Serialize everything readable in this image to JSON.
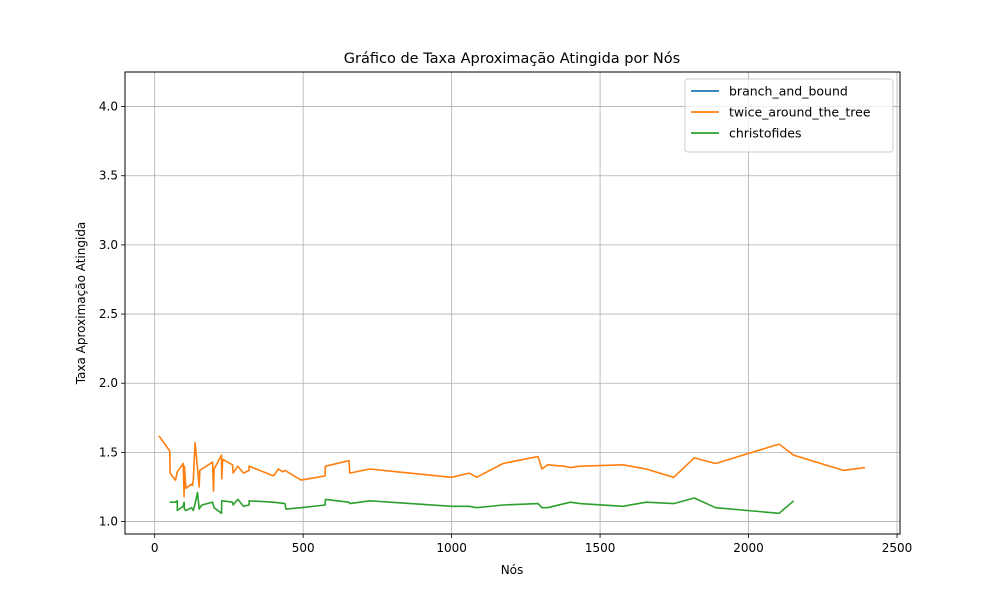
{
  "chart_data": {
    "type": "line",
    "title": "Gráfico de Taxa Aproximação Atingida por Nós",
    "xlabel": "Nós",
    "ylabel": "Taxa Aproximação Atingida",
    "xlim": [
      -100,
      2510
    ],
    "ylim": [
      0.91,
      4.25
    ],
    "xticks": [
      0,
      500,
      1000,
      1500,
      2000,
      2500
    ],
    "xtick_labels": [
      "0",
      "500",
      "1000",
      "1500",
      "2000",
      "2500"
    ],
    "yticks": [
      1.0,
      1.5,
      2.0,
      2.5,
      3.0,
      3.5,
      4.0
    ],
    "ytick_labels": [
      "1.0",
      "1.5",
      "2.0",
      "2.5",
      "3.0",
      "3.5",
      "4.0"
    ],
    "grid": true,
    "legend_position": "top-right",
    "series": [
      {
        "name": "branch_and_bound",
        "color": "#1f77b4",
        "points": []
      },
      {
        "name": "twice_around_the_tree",
        "color": "#ff7f0e",
        "points": [
          [
            14,
            1.62
          ],
          [
            51,
            1.51
          ],
          [
            52,
            1.35
          ],
          [
            70,
            1.3
          ],
          [
            76,
            1.36
          ],
          [
            96,
            1.42
          ],
          [
            99,
            1.18
          ],
          [
            100,
            1.4
          ],
          [
            105,
            1.24
          ],
          [
            124,
            1.27
          ],
          [
            127,
            1.26
          ],
          [
            130,
            1.3
          ],
          [
            136,
            1.57
          ],
          [
            150,
            1.25
          ],
          [
            152,
            1.37
          ],
          [
            159,
            1.38
          ],
          [
            195,
            1.43
          ],
          [
            198,
            1.22
          ],
          [
            200,
            1.38
          ],
          [
            225,
            1.48
          ],
          [
            226,
            1.31
          ],
          [
            229,
            1.45
          ],
          [
            262,
            1.41
          ],
          [
            264,
            1.35
          ],
          [
            280,
            1.4
          ],
          [
            299,
            1.35
          ],
          [
            318,
            1.37
          ],
          [
            318,
            1.4
          ],
          [
            400,
            1.33
          ],
          [
            417,
            1.38
          ],
          [
            431,
            1.36
          ],
          [
            439,
            1.37
          ],
          [
            493,
            1.3
          ],
          [
            574,
            1.33
          ],
          [
            575,
            1.4
          ],
          [
            654,
            1.44
          ],
          [
            657,
            1.35
          ],
          [
            724,
            1.38
          ],
          [
            1000,
            1.32
          ],
          [
            1060,
            1.35
          ],
          [
            1084,
            1.32
          ],
          [
            1173,
            1.42
          ],
          [
            1291,
            1.47
          ],
          [
            1304,
            1.38
          ],
          [
            1323,
            1.41
          ],
          [
            1379,
            1.4
          ],
          [
            1400,
            1.39
          ],
          [
            1432,
            1.4
          ],
          [
            1577,
            1.41
          ],
          [
            1655,
            1.38
          ],
          [
            1748,
            1.32
          ],
          [
            1817,
            1.46
          ],
          [
            1889,
            1.42
          ],
          [
            2103,
            1.56
          ],
          [
            2152,
            1.48
          ],
          [
            2319,
            1.37
          ],
          [
            2392,
            1.39
          ]
        ]
      },
      {
        "name": "christofides",
        "color": "#2ca02c",
        "points": [
          [
            51,
            1.14
          ],
          [
            70,
            1.14
          ],
          [
            76,
            1.15
          ],
          [
            76,
            1.08
          ],
          [
            96,
            1.11
          ],
          [
            99,
            1.14
          ],
          [
            100,
            1.09
          ],
          [
            105,
            1.08
          ],
          [
            124,
            1.1
          ],
          [
            127,
            1.09
          ],
          [
            130,
            1.08
          ],
          [
            136,
            1.13
          ],
          [
            144,
            1.21
          ],
          [
            150,
            1.09
          ],
          [
            152,
            1.1
          ],
          [
            159,
            1.12
          ],
          [
            195,
            1.14
          ],
          [
            200,
            1.1
          ],
          [
            225,
            1.06
          ],
          [
            226,
            1.15
          ],
          [
            229,
            1.15
          ],
          [
            262,
            1.14
          ],
          [
            264,
            1.12
          ],
          [
            280,
            1.16
          ],
          [
            299,
            1.11
          ],
          [
            318,
            1.12
          ],
          [
            318,
            1.15
          ],
          [
            400,
            1.14
          ],
          [
            439,
            1.13
          ],
          [
            442,
            1.09
          ],
          [
            493,
            1.1
          ],
          [
            574,
            1.12
          ],
          [
            575,
            1.16
          ],
          [
            654,
            1.14
          ],
          [
            657,
            1.13
          ],
          [
            724,
            1.15
          ],
          [
            1000,
            1.11
          ],
          [
            1060,
            1.11
          ],
          [
            1084,
            1.1
          ],
          [
            1173,
            1.12
          ],
          [
            1291,
            1.13
          ],
          [
            1304,
            1.1
          ],
          [
            1323,
            1.1
          ],
          [
            1400,
            1.14
          ],
          [
            1432,
            1.13
          ],
          [
            1577,
            1.11
          ],
          [
            1655,
            1.14
          ],
          [
            1748,
            1.13
          ],
          [
            1817,
            1.17
          ],
          [
            1889,
            1.1
          ],
          [
            2103,
            1.06
          ],
          [
            2152,
            1.15
          ]
        ]
      }
    ]
  }
}
